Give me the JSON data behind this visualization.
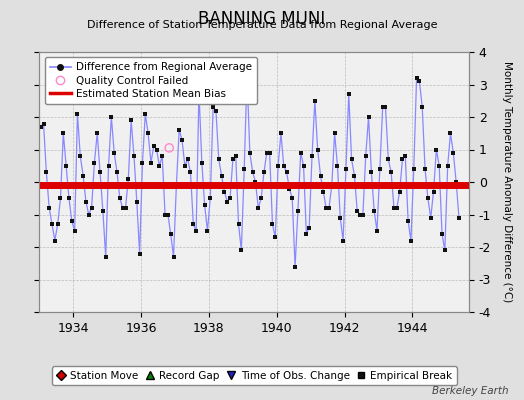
{
  "title": "BANNING MUNI",
  "subtitle": "Difference of Station Temperature Data from Regional Average",
  "ylabel_right": "Monthly Temperature Anomaly Difference (°C)",
  "watermark": "Berkeley Earth",
  "xlim": [
    1933.0,
    1945.67
  ],
  "ylim": [
    -4,
    4
  ],
  "yticks": [
    -4,
    -3,
    -2,
    -1,
    0,
    1,
    2,
    3,
    4
  ],
  "xticks": [
    1934,
    1936,
    1938,
    1940,
    1942,
    1944
  ],
  "mean_bias": -0.08,
  "bias_color": "#dd0000",
  "line_color": "#8888ff",
  "marker_color": "#111111",
  "qc_fail_x": 1936.83,
  "qc_fail_y": 1.05,
  "background_color": "#e0e0e0",
  "plot_bg_color": "#f0f0f0",
  "grid_color": "#bbbbbb",
  "legend1_items": [
    {
      "label": "Difference from Regional Average"
    },
    {
      "label": "Quality Control Failed"
    },
    {
      "label": "Estimated Station Mean Bias"
    }
  ],
  "legend2_items": [
    {
      "label": "Station Move"
    },
    {
      "label": "Record Gap"
    },
    {
      "label": "Time of Obs. Change"
    },
    {
      "label": "Empirical Break"
    }
  ],
  "data_x": [
    1933.042,
    1933.125,
    1933.208,
    1933.292,
    1933.375,
    1933.458,
    1933.542,
    1933.625,
    1933.708,
    1933.792,
    1933.875,
    1933.958,
    1934.042,
    1934.125,
    1934.208,
    1934.292,
    1934.375,
    1934.458,
    1934.542,
    1934.625,
    1934.708,
    1934.792,
    1934.875,
    1934.958,
    1935.042,
    1935.125,
    1935.208,
    1935.292,
    1935.375,
    1935.458,
    1935.542,
    1935.625,
    1935.708,
    1935.792,
    1935.875,
    1935.958,
    1936.042,
    1936.125,
    1936.208,
    1936.292,
    1936.375,
    1936.458,
    1936.542,
    1936.625,
    1936.708,
    1936.792,
    1936.875,
    1936.958,
    1937.042,
    1937.125,
    1937.208,
    1937.292,
    1937.375,
    1937.458,
    1937.542,
    1937.625,
    1937.708,
    1937.792,
    1937.875,
    1937.958,
    1938.042,
    1938.125,
    1938.208,
    1938.292,
    1938.375,
    1938.458,
    1938.542,
    1938.625,
    1938.708,
    1938.792,
    1938.875,
    1938.958,
    1939.042,
    1939.125,
    1939.208,
    1939.292,
    1939.375,
    1939.458,
    1939.542,
    1939.625,
    1939.708,
    1939.792,
    1939.875,
    1939.958,
    1940.042,
    1940.125,
    1940.208,
    1940.292,
    1940.375,
    1940.458,
    1940.542,
    1940.625,
    1940.708,
    1940.792,
    1940.875,
    1940.958,
    1941.042,
    1941.125,
    1941.208,
    1941.292,
    1941.375,
    1941.458,
    1941.542,
    1941.625,
    1941.708,
    1941.792,
    1941.875,
    1941.958,
    1942.042,
    1942.125,
    1942.208,
    1942.292,
    1942.375,
    1942.458,
    1942.542,
    1942.625,
    1942.708,
    1942.792,
    1942.875,
    1942.958,
    1943.042,
    1943.125,
    1943.208,
    1943.292,
    1943.375,
    1943.458,
    1943.542,
    1943.625,
    1943.708,
    1943.792,
    1943.875,
    1943.958,
    1944.042,
    1944.125,
    1944.208,
    1944.292,
    1944.375,
    1944.458,
    1944.542,
    1944.625,
    1944.708,
    1944.792,
    1944.875,
    1944.958,
    1945.042,
    1945.125,
    1945.208,
    1945.292,
    1945.375
  ],
  "data_y": [
    1.7,
    1.8,
    0.3,
    -0.8,
    -1.3,
    -1.8,
    -1.3,
    -0.5,
    1.5,
    0.5,
    -0.5,
    -1.2,
    -1.5,
    2.1,
    0.8,
    0.2,
    -0.6,
    -1.0,
    -0.8,
    0.6,
    1.5,
    0.3,
    -0.9,
    -2.3,
    0.5,
    2.0,
    0.9,
    0.3,
    -0.5,
    -0.8,
    -0.8,
    0.1,
    1.9,
    0.8,
    -0.6,
    -2.2,
    0.6,
    2.1,
    1.5,
    0.6,
    1.1,
    1.0,
    0.5,
    0.8,
    -1.0,
    -1.0,
    -1.6,
    -2.3,
    -0.1,
    1.6,
    1.3,
    0.5,
    0.7,
    0.3,
    -1.3,
    -1.5,
    2.8,
    0.6,
    -0.7,
    -1.5,
    -0.5,
    2.3,
    2.2,
    0.7,
    0.2,
    -0.3,
    -0.6,
    -0.5,
    0.7,
    0.8,
    -1.3,
    -2.1,
    0.4,
    3.3,
    0.9,
    0.3,
    0.0,
    -0.8,
    -0.5,
    0.3,
    0.9,
    0.9,
    -1.3,
    -1.7,
    0.5,
    1.5,
    0.5,
    0.3,
    -0.2,
    -0.5,
    -2.6,
    -0.9,
    0.9,
    0.5,
    -1.6,
    -1.4,
    0.8,
    2.5,
    1.0,
    0.2,
    -0.3,
    -0.8,
    -0.8,
    -0.1,
    1.5,
    0.5,
    -1.1,
    -1.8,
    0.4,
    2.7,
    0.7,
    0.2,
    -0.9,
    -1.0,
    -1.0,
    0.8,
    2.0,
    0.3,
    -0.9,
    -1.5,
    0.4,
    2.3,
    2.3,
    0.7,
    0.3,
    -0.8,
    -0.8,
    -0.3,
    0.7,
    0.8,
    -1.2,
    -1.8,
    0.4,
    3.2,
    3.1,
    2.3,
    0.4,
    -0.5,
    -1.1,
    -0.3,
    1.0,
    0.5,
    -1.6,
    -2.1,
    0.5,
    1.5,
    0.9,
    0.0,
    -1.1
  ]
}
